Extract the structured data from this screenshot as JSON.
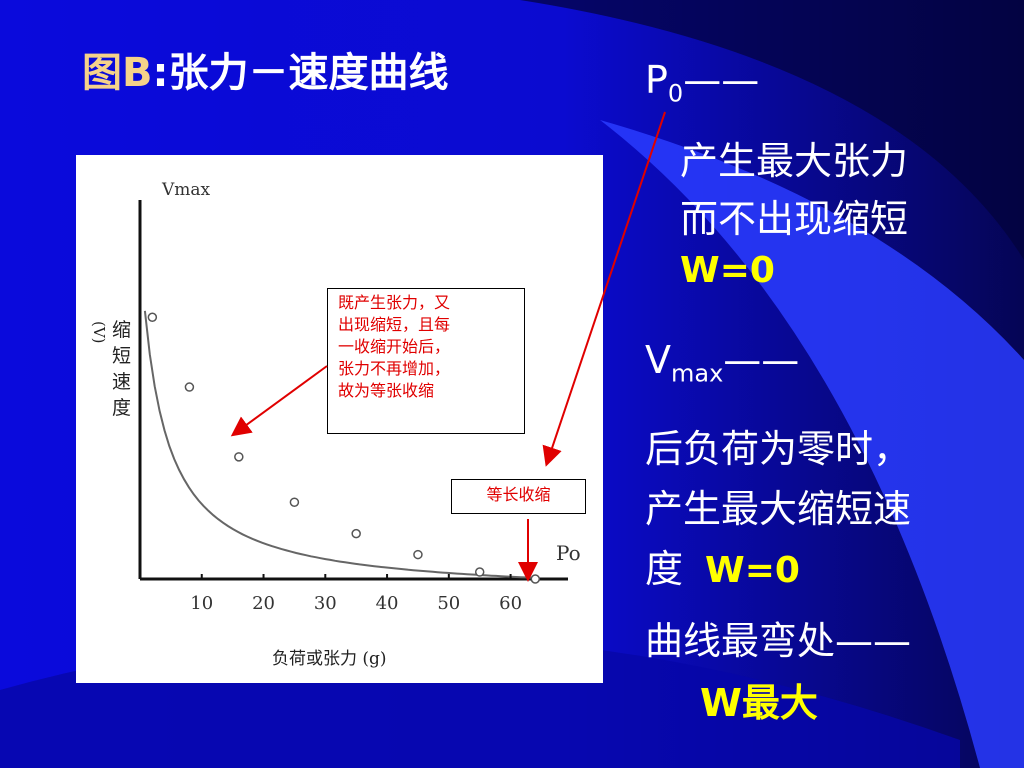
{
  "slide": {
    "title_prefix": "图B",
    "title_main": ":张力－速度曲线",
    "p0_label": "P",
    "p0_sub": "0",
    "dash": "——",
    "p0_line1": "产生最大张力",
    "p0_line2": "而不出现缩短",
    "p0_w": "W=0",
    "vmax_label": "V",
    "vmax_sub": "max",
    "vmax_line1": "后负荷为零时，",
    "vmax_line2": "产生最大缩短速",
    "vmax_line3": "度",
    "vmax_w": "W=0",
    "bend_label": "曲线最弯处",
    "bend_w": "W最大"
  },
  "chart": {
    "ylabel_top": "Vmax",
    "ylabel_chars": [
      "缩",
      "短",
      "速",
      "度"
    ],
    "ylabel_paren": "(V)",
    "xlabel": "负荷或张力 (g)",
    "p0_tick": "Po",
    "x_ticks": [
      "10",
      "20",
      "30",
      "40",
      "50",
      "60"
    ],
    "annotation_isotonic": [
      "既产生张力，又",
      "出现缩短，且每",
      "一收缩开始后，",
      "张力不再增加，",
      "故为等张收缩"
    ],
    "annotation_isometric": "等长收缩"
  },
  "chart_data": {
    "type": "scatter",
    "xlabel": "负荷或张力 (g)",
    "ylabel": "缩短速度 (V)",
    "x_ticks": [
      10,
      20,
      30,
      40,
      50,
      60
    ],
    "x": [
      2,
      8,
      16,
      25,
      35,
      45,
      55,
      64
    ],
    "y": [
      0.75,
      0.55,
      0.35,
      0.22,
      0.13,
      0.07,
      0.02,
      0
    ],
    "curve": "hyperbolic fit through points",
    "xlim": [
      0,
      68
    ],
    "ylim": [
      0,
      1
    ]
  },
  "colors": {
    "background": "#0a0adc",
    "text": "#ffffff",
    "highlight": "#ffff00",
    "title_prefix": "#f5d28a",
    "annotation_text": "#e00000",
    "arrow": "#e00000"
  }
}
